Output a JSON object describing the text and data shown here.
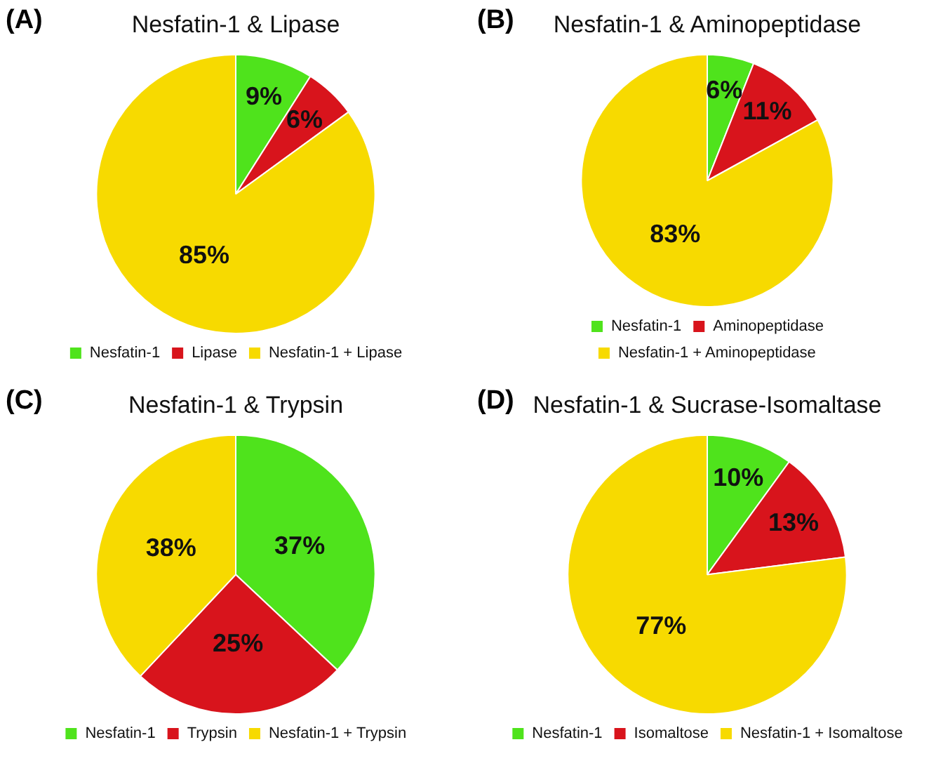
{
  "chart_data": [
    {
      "type": "pie",
      "title": "Nesfatin-1 & Lipase",
      "annotations": [
        "(A)"
      ],
      "categories": [
        "Nesfatin-1",
        "Lipase",
        "Nesfatin-1 + Lipase"
      ],
      "values": [
        9,
        6,
        85
      ],
      "value_labels": [
        "9%",
        "6%",
        "85%"
      ],
      "colors": [
        "#4fe31c",
        "#d8141c",
        "#f7da00"
      ],
      "legend": "bottom"
    },
    {
      "type": "pie",
      "title": "Nesfatin-1 & Aminopeptidase",
      "annotations": [
        "(B)"
      ],
      "categories": [
        "Nesfatin-1",
        "Aminopeptidase",
        "Nesfatin-1 + Aminopeptidase"
      ],
      "values": [
        6,
        11,
        83
      ],
      "value_labels": [
        "6%",
        "11%",
        "83%"
      ],
      "colors": [
        "#4fe31c",
        "#d8141c",
        "#f7da00"
      ],
      "legend": "bottom"
    },
    {
      "type": "pie",
      "title": "Nesfatin-1 & Trypsin",
      "annotations": [
        "(C)"
      ],
      "categories": [
        "Nesfatin-1",
        "Trypsin",
        "Nesfatin-1 + Trypsin"
      ],
      "values": [
        37,
        25,
        38
      ],
      "value_labels": [
        "37%",
        "25%",
        "38%"
      ],
      "colors": [
        "#4fe31c",
        "#d8141c",
        "#f7da00"
      ],
      "legend": "bottom"
    },
    {
      "type": "pie",
      "title": "Nesfatin-1 & Sucrase-Isomaltase",
      "annotations": [
        "(D)"
      ],
      "categories": [
        "Nesfatin-1",
        "Isomaltose",
        "Nesfatin-1 + Isomaltose"
      ],
      "values": [
        10,
        13,
        77
      ],
      "value_labels": [
        "10%",
        "13%",
        "77%"
      ],
      "colors": [
        "#4fe31c",
        "#d8141c",
        "#f7da00"
      ],
      "legend": "bottom"
    }
  ]
}
